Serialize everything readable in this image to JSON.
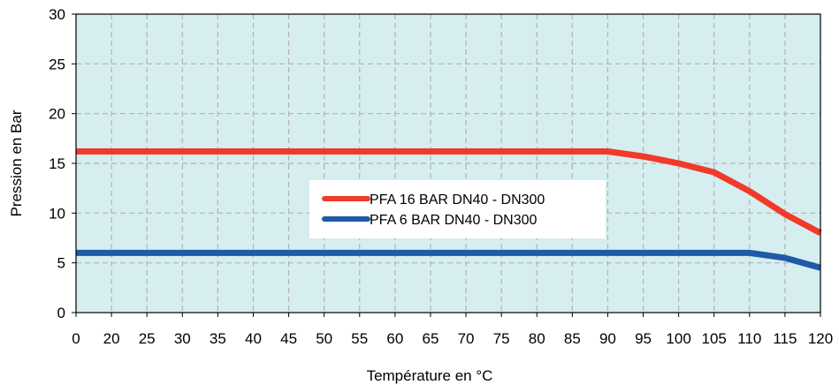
{
  "chart_data": {
    "type": "line",
    "title": "",
    "xlabel": "Température en °C",
    "ylabel": "Pression en Bar",
    "x_tick_labels": [
      "0",
      "20",
      "25",
      "30",
      "35",
      "40",
      "45",
      "50",
      "55",
      "60",
      "65",
      "70",
      "75",
      "80",
      "85",
      "90",
      "95",
      "100",
      "105",
      "110",
      "115",
      "120"
    ],
    "y_ticks": [
      0,
      5,
      10,
      15,
      20,
      25,
      30
    ],
    "ylim": [
      0,
      30
    ],
    "grid": true,
    "legend_position": "center",
    "colors": {
      "plot_background": "#d6eef0",
      "grid": "#b3b3b3",
      "legend_background": "#ffffff"
    },
    "series": [
      {
        "name": "PFA 16 BAR DN40 - DN300",
        "color": "#f03a2a",
        "values": [
          16.2,
          16.2,
          16.2,
          16.2,
          16.2,
          16.2,
          16.2,
          16.2,
          16.2,
          16.2,
          16.2,
          16.2,
          16.2,
          16.2,
          16.2,
          16.2,
          15.7,
          15.0,
          14.1,
          12.2,
          9.9,
          8.0
        ]
      },
      {
        "name": "PFA 6 BAR DN40 - DN300",
        "color": "#1e5aa8",
        "values": [
          6.0,
          6.0,
          6.0,
          6.0,
          6.0,
          6.0,
          6.0,
          6.0,
          6.0,
          6.0,
          6.0,
          6.0,
          6.0,
          6.0,
          6.0,
          6.0,
          6.0,
          6.0,
          6.0,
          6.0,
          5.5,
          4.5
        ]
      }
    ]
  }
}
